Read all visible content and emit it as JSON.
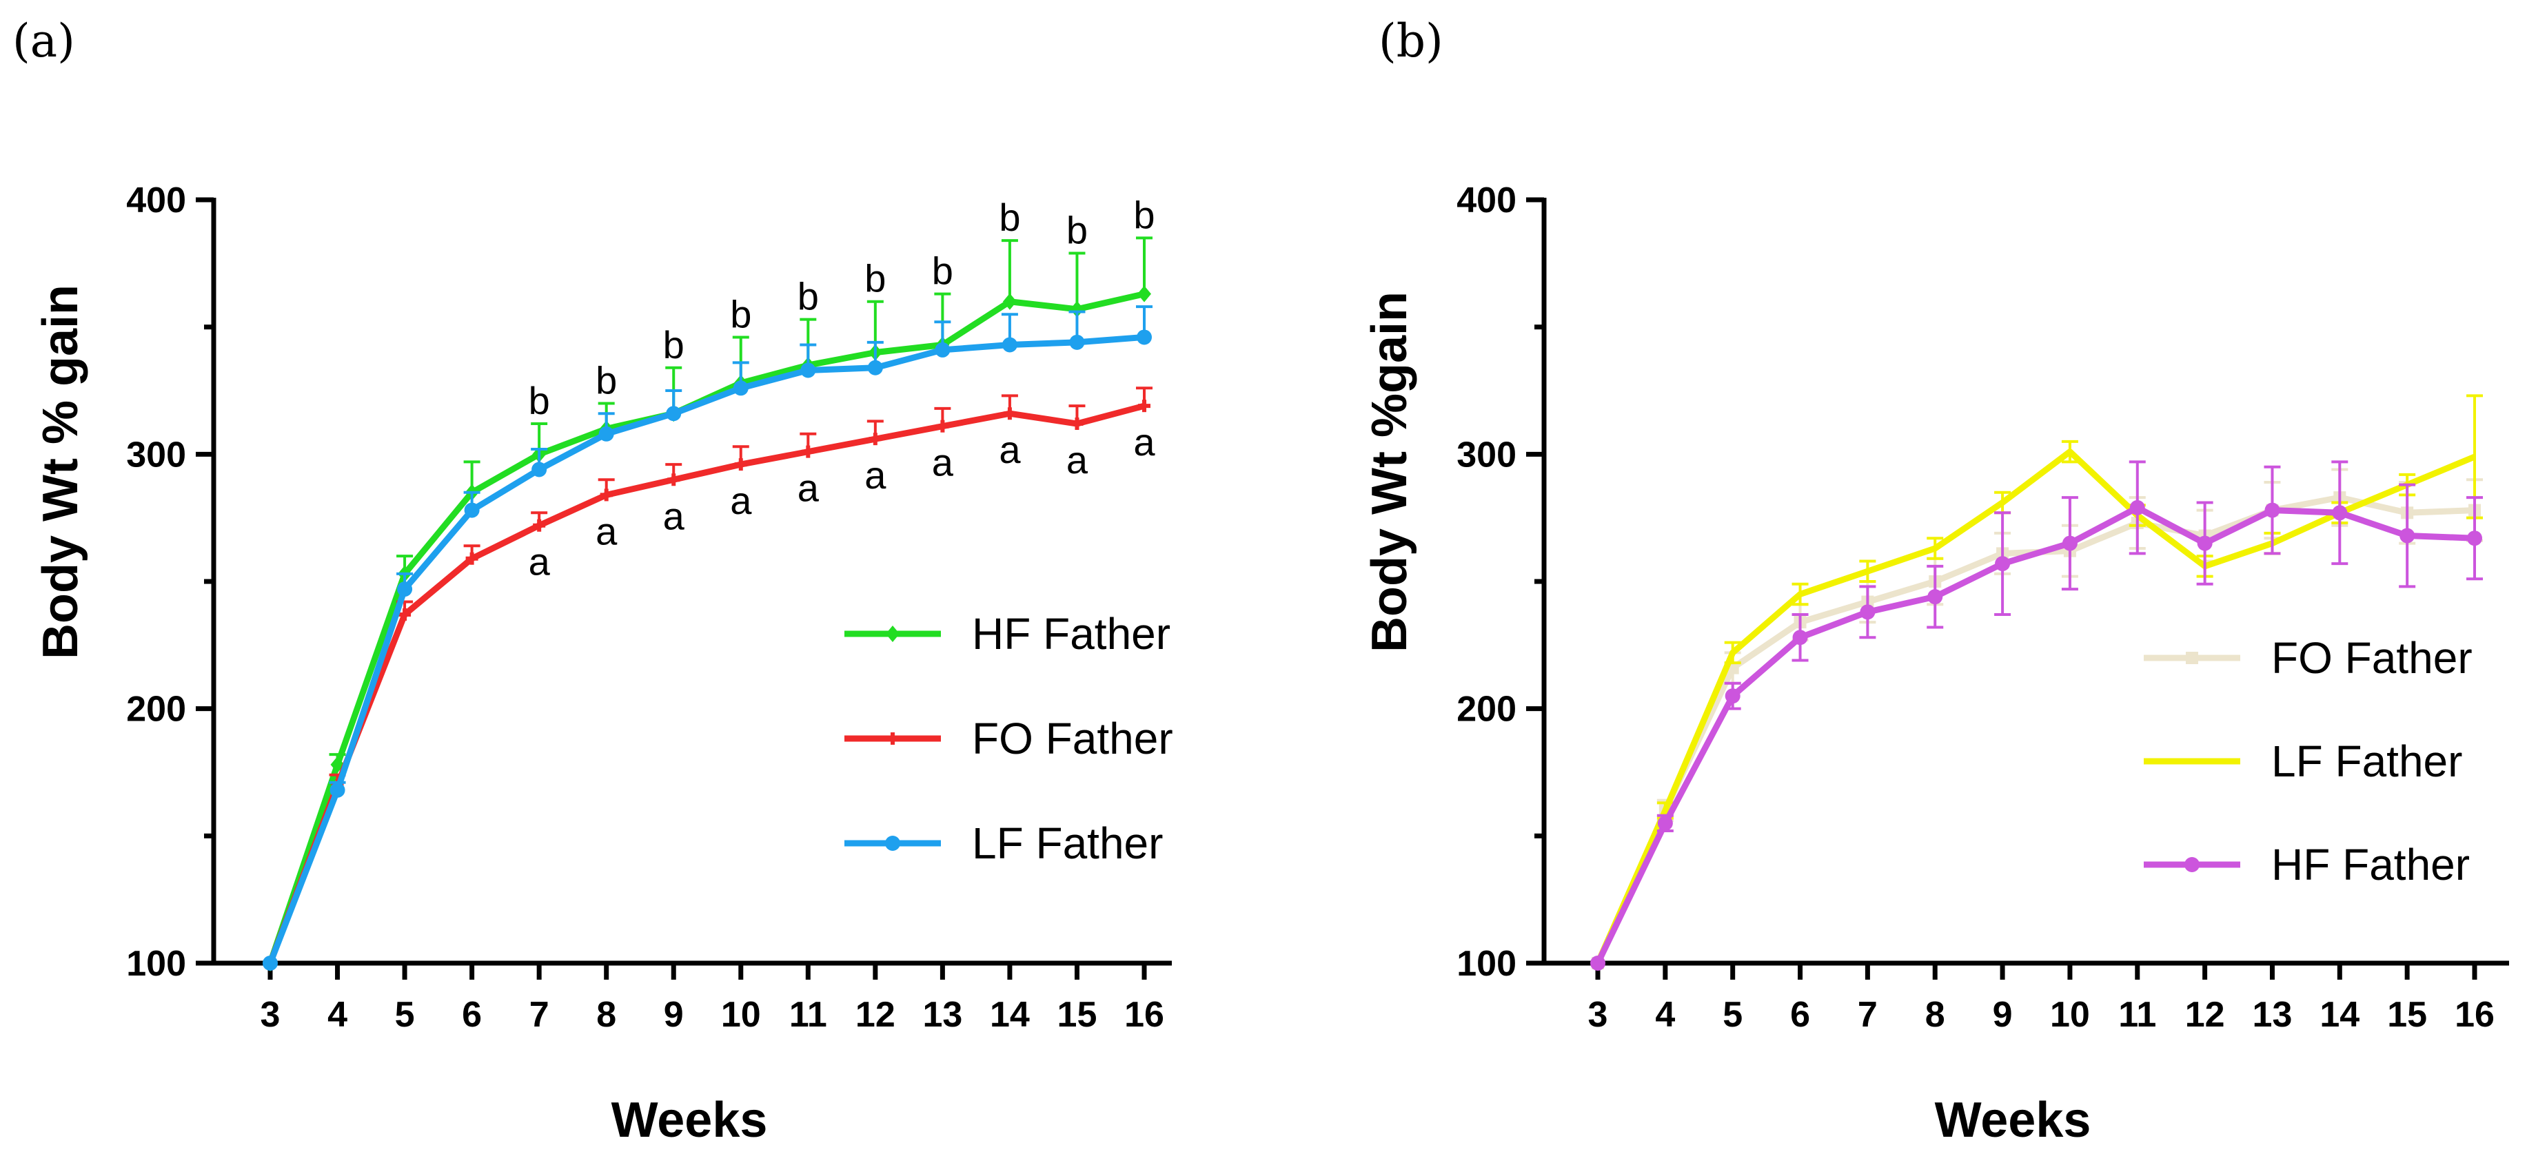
{
  "chart_data": [
    {
      "panel": "(a)",
      "type": "line",
      "xlabel": "Weeks",
      "ylabel": "Body Wt % gain",
      "x": [
        3,
        4,
        5,
        6,
        7,
        8,
        9,
        10,
        11,
        12,
        13,
        14,
        15,
        16
      ],
      "xticks": [
        "3",
        "4",
        "5",
        "6",
        "7",
        "8",
        "9",
        "10",
        "11",
        "12",
        "13",
        "14",
        "15",
        "16"
      ],
      "ylim": [
        100,
        400
      ],
      "yticks": [
        "100",
        "200",
        "300",
        "400"
      ],
      "legend_position": "center-right",
      "series": [
        {
          "name": "HF Father",
          "color": "#22dd22",
          "marker": "diamond",
          "values": [
            100,
            178,
            253,
            285,
            300,
            310,
            316,
            328,
            335,
            340,
            343,
            360,
            357,
            363
          ],
          "errors": [
            0,
            4,
            7,
            12,
            12,
            10,
            18,
            18,
            18,
            20,
            20,
            24,
            22,
            22
          ]
        },
        {
          "name": "FO Father",
          "color": "#f02a2a",
          "marker": "cross",
          "values": [
            100,
            170,
            237,
            259,
            272,
            284,
            290,
            296,
            301,
            306,
            311,
            316,
            312,
            319
          ],
          "errors": [
            0,
            4,
            5,
            5,
            5,
            6,
            6,
            7,
            7,
            7,
            7,
            7,
            7,
            7
          ]
        },
        {
          "name": "LF Father",
          "color": "#1ea0ee",
          "marker": "circle",
          "values": [
            100,
            168,
            247,
            278,
            294,
            308,
            316,
            326,
            333,
            334,
            341,
            343,
            344,
            346
          ],
          "errors": [
            0,
            3,
            6,
            7,
            8,
            8,
            9,
            10,
            10,
            10,
            11,
            12,
            12,
            12
          ]
        }
      ],
      "annotations": [
        {
          "x": 7,
          "label": "b",
          "series": "HF Father"
        },
        {
          "x": 8,
          "label": "b",
          "series": "HF Father"
        },
        {
          "x": 9,
          "label": "b",
          "series": "HF Father"
        },
        {
          "x": 10,
          "label": "b",
          "series": "HF Father"
        },
        {
          "x": 11,
          "label": "b",
          "series": "HF Father"
        },
        {
          "x": 12,
          "label": "b",
          "series": "HF Father"
        },
        {
          "x": 13,
          "label": "b",
          "series": "HF Father"
        },
        {
          "x": 14,
          "label": "b",
          "series": "HF Father"
        },
        {
          "x": 15,
          "label": "b",
          "series": "HF Father"
        },
        {
          "x": 16,
          "label": "b",
          "series": "HF Father"
        },
        {
          "x": 7,
          "label": "a",
          "series": "FO Father"
        },
        {
          "x": 8,
          "label": "a",
          "series": "FO Father"
        },
        {
          "x": 9,
          "label": "a",
          "series": "FO Father"
        },
        {
          "x": 10,
          "label": "a",
          "series": "FO Father"
        },
        {
          "x": 11,
          "label": "a",
          "series": "FO Father"
        },
        {
          "x": 12,
          "label": "a",
          "series": "FO Father"
        },
        {
          "x": 13,
          "label": "a",
          "series": "FO Father"
        },
        {
          "x": 14,
          "label": "a",
          "series": "FO Father"
        },
        {
          "x": 15,
          "label": "a",
          "series": "FO Father"
        },
        {
          "x": 16,
          "label": "a",
          "series": "FO Father"
        }
      ]
    },
    {
      "panel": "(b)",
      "type": "line",
      "xlabel": "Weeks",
      "ylabel": "Body Wt %gain",
      "x": [
        3,
        4,
        5,
        6,
        7,
        8,
        9,
        10,
        11,
        12,
        13,
        14,
        15,
        16
      ],
      "xticks": [
        "3",
        "4",
        "5",
        "6",
        "7",
        "8",
        "9",
        "10",
        "11",
        "12",
        "13",
        "14",
        "15",
        "16"
      ],
      "ylim": [
        100,
        400
      ],
      "yticks": [
        "100",
        "200",
        "300",
        "400"
      ],
      "legend_position": "center-right",
      "series": [
        {
          "name": "FO Father",
          "color": "#ece4cc",
          "marker": "square",
          "values": [
            100,
            160,
            216,
            234,
            242,
            250,
            261,
            262,
            273,
            268,
            278,
            283,
            277,
            278
          ],
          "errors": [
            0,
            4,
            6,
            7,
            8,
            9,
            8,
            10,
            10,
            10,
            11,
            11,
            12,
            12
          ]
        },
        {
          "name": "LF Father",
          "color": "#f2f200",
          "marker": "none",
          "values": [
            100,
            160,
            222,
            245,
            254,
            263,
            281,
            301,
            276,
            256,
            265,
            277,
            288,
            299
          ],
          "errors": [
            0,
            3,
            4,
            4,
            4,
            4,
            4,
            4,
            4,
            4,
            4,
            4,
            4,
            24
          ]
        },
        {
          "name": "HF Father",
          "color": "#cc55dd",
          "marker": "circle",
          "values": [
            100,
            155,
            205,
            228,
            238,
            244,
            257,
            265,
            279,
            265,
            278,
            277,
            268,
            267
          ],
          "errors": [
            0,
            3,
            5,
            9,
            10,
            12,
            20,
            18,
            18,
            16,
            17,
            20,
            20,
            16
          ]
        }
      ],
      "annotations": []
    }
  ]
}
